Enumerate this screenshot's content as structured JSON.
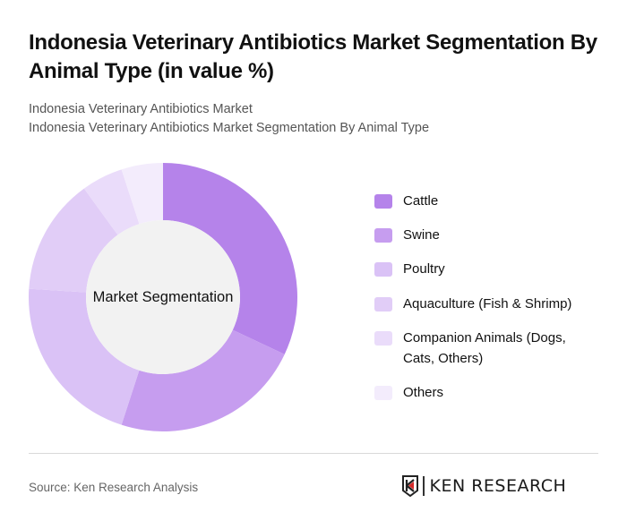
{
  "header": {
    "title": "Indonesia Veterinary Antibiotics Market Segmentation By Animal Type (in value %)",
    "subtitle_1": "Indonesia Veterinary Antibiotics Market",
    "subtitle_2": "Indonesia Veterinary Antibiotics Market Segmentation By Animal Type"
  },
  "chart": {
    "center_label": "Market Segmentation"
  },
  "legend": {
    "items": [
      {
        "label": "Cattle",
        "color": "#b583ea"
      },
      {
        "label": "Swine",
        "color": "#c69def"
      },
      {
        "label": "Poultry",
        "color": "#dac2f6"
      },
      {
        "label": "Aquaculture (Fish & Shrimp)",
        "color": "#e1cdf7"
      },
      {
        "label": "Companion Animals (Dogs, Cats, Others)",
        "color": "#eadcfa"
      },
      {
        "label": "Others",
        "color": "#f3ecfc"
      }
    ]
  },
  "footer": {
    "source": "Source: Ken Research Analysis",
    "logo_text": "KEN RESEARCH"
  },
  "chart_data": {
    "type": "pie",
    "variant": "donut",
    "title": "Indonesia Veterinary Antibiotics Market Segmentation By Animal Type (in value %)",
    "subtitle": "Indonesia Veterinary Antibiotics Market Segmentation By Animal Type",
    "center_label": "Market Segmentation",
    "categories": [
      "Cattle",
      "Swine",
      "Poultry",
      "Aquaculture (Fish & Shrimp)",
      "Companion Animals (Dogs, Cats, Others)",
      "Others"
    ],
    "values": [
      32,
      23,
      21,
      14,
      5,
      5
    ],
    "colors": [
      "#b583ea",
      "#c69def",
      "#dac2f6",
      "#e1cdf7",
      "#eadcfa",
      "#f3ecfc"
    ],
    "unit": "%",
    "legend_position": "right",
    "source": "Source: Ken Research Analysis"
  }
}
